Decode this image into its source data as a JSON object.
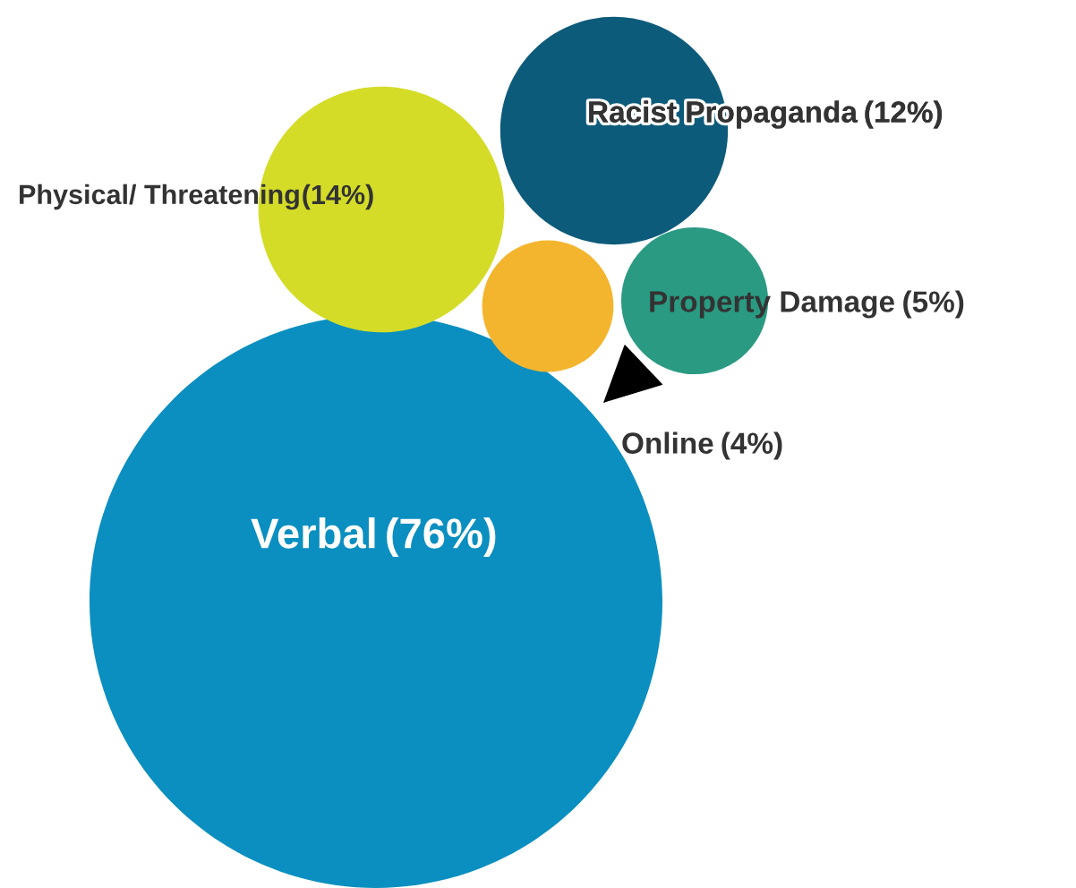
{
  "chart_data": {
    "type": "other",
    "categories": [
      "Verbal",
      "Physical/ Threatening",
      "Racist Propaganda",
      "Property Damage",
      "Online"
    ],
    "values": [
      76,
      14,
      12,
      5,
      4
    ],
    "value_labels": [
      "(76%)",
      "(14%)",
      "(12%)",
      "(5%)",
      "(4%)"
    ],
    "colors": [
      "#0a8fc0",
      "#d4dc28",
      "#0d5b7a",
      "#2a9a82",
      "#f4b52e"
    ]
  }
}
